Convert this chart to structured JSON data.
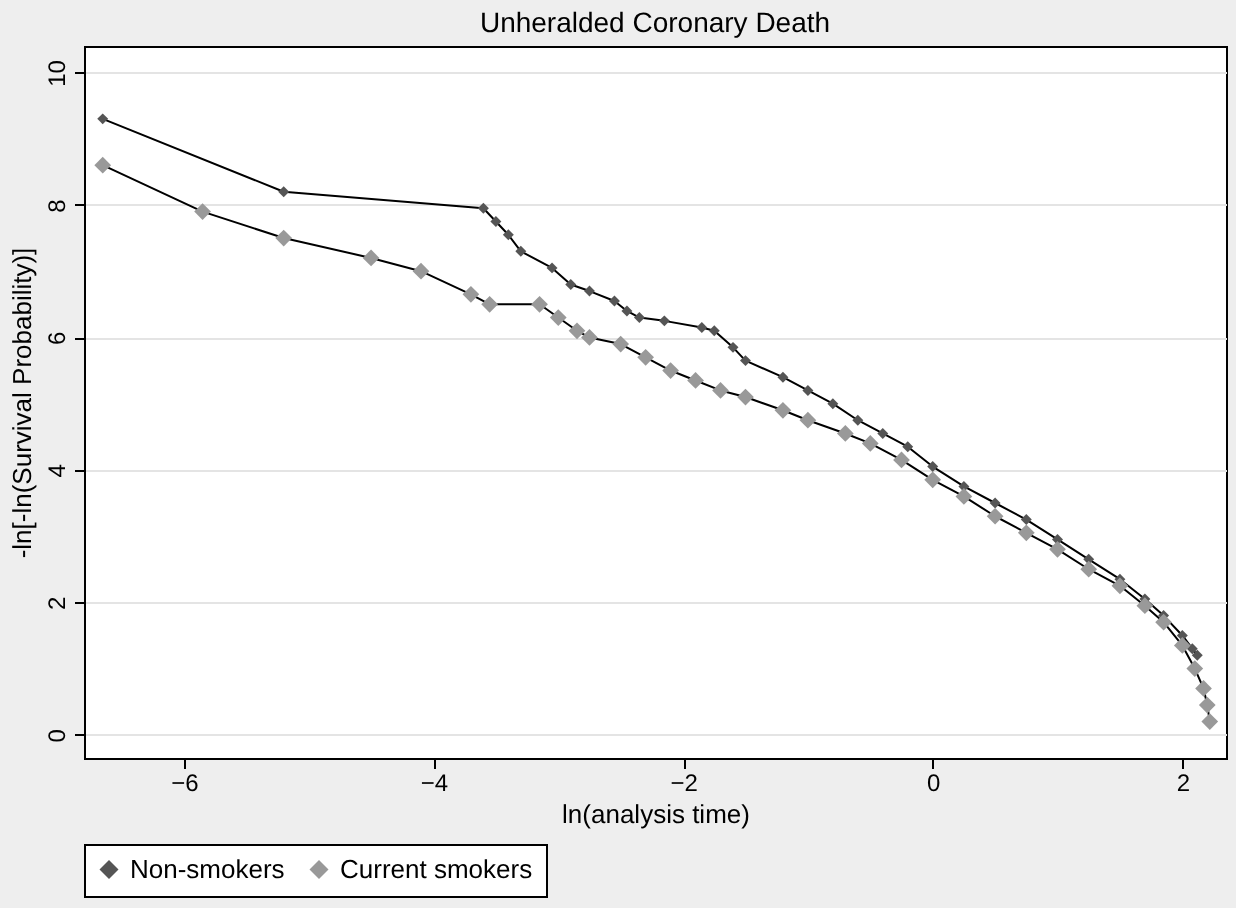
{
  "chart_data": {
    "type": "line",
    "title": "Unheralded Coronary Death",
    "xlabel": "ln(analysis time)",
    "ylabel": "-ln[-ln(Survival Probability)]",
    "xlim": [
      -6.8,
      2.35
    ],
    "xticks": [
      -6,
      -4,
      -2,
      0,
      2
    ],
    "ylim": [
      -0.35,
      10.4
    ],
    "yticks": [
      0,
      2,
      4,
      6,
      8,
      10
    ],
    "grid": "y",
    "legend": "bottom",
    "marker": "diamond",
    "line_style": "solid",
    "series": [
      {
        "name": "Non-smokers",
        "color": "#555555",
        "x": [
          -6.65,
          -5.2,
          -3.6,
          -3.5,
          -3.4,
          -3.3,
          -3.05,
          -2.9,
          -2.75,
          -2.55,
          -2.45,
          -2.35,
          -2.15,
          -1.85,
          -1.75,
          -1.6,
          -1.5,
          -1.2,
          -1.0,
          -0.8,
          -0.6,
          -0.4,
          -0.2,
          0.0,
          0.25,
          0.5,
          0.75,
          1.0,
          1.25,
          1.5,
          1.7,
          1.85,
          2.0,
          2.08,
          2.12
        ],
        "values": [
          9.3,
          8.2,
          7.95,
          7.75,
          7.55,
          7.3,
          7.05,
          6.8,
          6.7,
          6.55,
          6.4,
          6.3,
          6.25,
          6.15,
          6.1,
          5.85,
          5.65,
          5.4,
          5.2,
          5.0,
          4.75,
          4.55,
          4.35,
          4.05,
          3.75,
          3.5,
          3.25,
          2.95,
          2.65,
          2.35,
          2.05,
          1.8,
          1.5,
          1.3,
          1.2
        ]
      },
      {
        "name": "Current smokers",
        "color": "#999999",
        "x": [
          -6.65,
          -5.85,
          -5.2,
          -4.5,
          -4.1,
          -3.7,
          -3.55,
          -3.15,
          -3.0,
          -2.85,
          -2.75,
          -2.5,
          -2.3,
          -2.1,
          -1.9,
          -1.7,
          -1.5,
          -1.2,
          -1.0,
          -0.7,
          -0.5,
          -0.25,
          0.0,
          0.25,
          0.5,
          0.75,
          1.0,
          1.25,
          1.5,
          1.7,
          1.85,
          2.0,
          2.1,
          2.17,
          2.2,
          2.22
        ],
        "values": [
          8.6,
          7.9,
          7.5,
          7.2,
          7.0,
          6.65,
          6.5,
          6.5,
          6.3,
          6.1,
          6.0,
          5.9,
          5.7,
          5.5,
          5.35,
          5.2,
          5.1,
          4.9,
          4.75,
          4.55,
          4.4,
          4.15,
          3.85,
          3.6,
          3.3,
          3.05,
          2.8,
          2.5,
          2.25,
          1.95,
          1.7,
          1.35,
          1.0,
          0.7,
          0.45,
          0.2
        ]
      }
    ]
  }
}
